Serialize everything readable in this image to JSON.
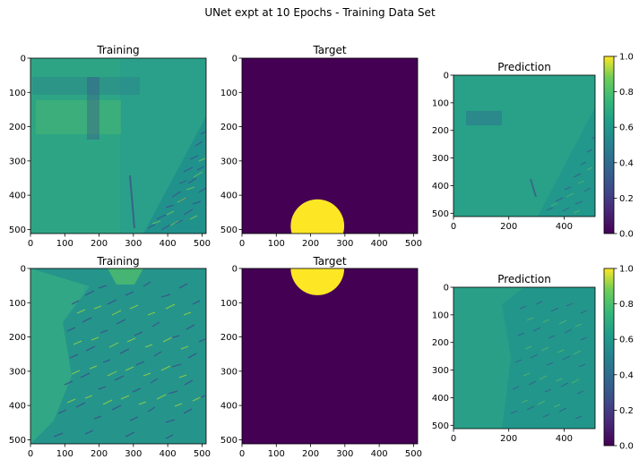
{
  "figure": {
    "suptitle": "UNet expt at 10 Epochs - Training Data Set"
  },
  "chart_data": [
    {
      "type": "heatmap",
      "title": "Training",
      "row": 1,
      "image": "training-seafloor-texture-1",
      "xlim": [
        0,
        512
      ],
      "ylim": [
        512,
        0
      ],
      "xticks": [
        0,
        100,
        200,
        300,
        400,
        500
      ],
      "yticks": [
        0,
        100,
        200,
        300,
        400,
        500
      ],
      "colormap": "viridis"
    },
    {
      "type": "heatmap",
      "title": "Target",
      "row": 1,
      "image": "target-mask",
      "mask_circle": {
        "cx": 220,
        "cy": 490,
        "r": 78
      },
      "background_value": 0,
      "circle_value": 1,
      "xlim": [
        0,
        512
      ],
      "ylim": [
        512,
        0
      ],
      "xticks": [
        0,
        100,
        200,
        300,
        400,
        500
      ],
      "yticks": [
        0,
        100,
        200,
        300,
        400,
        500
      ],
      "colormap": "viridis"
    },
    {
      "type": "heatmap",
      "title": "Prediction",
      "row": 1,
      "image": "prediction-texture-1",
      "xlim": [
        0,
        512
      ],
      "ylim": [
        512,
        0
      ],
      "xticks": [
        0,
        200,
        400
      ],
      "yticks": [
        0,
        100,
        200,
        300,
        400,
        500
      ],
      "colormap": "viridis",
      "colorbar": {
        "range": [
          0.0,
          1.0
        ],
        "ticks": [
          "0.0",
          "0.2",
          "0.4",
          "0.6",
          "0.8",
          "1.0"
        ]
      }
    },
    {
      "type": "heatmap",
      "title": "Training",
      "row": 2,
      "image": "training-seafloor-texture-2",
      "xlim": [
        0,
        512
      ],
      "ylim": [
        512,
        0
      ],
      "xticks": [
        0,
        100,
        200,
        300,
        400,
        500
      ],
      "yticks": [
        0,
        100,
        200,
        300,
        400,
        500
      ],
      "colormap": "viridis"
    },
    {
      "type": "heatmap",
      "title": "Target",
      "row": 2,
      "image": "target-mask",
      "mask_circle": {
        "cx": 220,
        "cy": 0,
        "r": 78
      },
      "background_value": 0,
      "circle_value": 1,
      "xlim": [
        0,
        512
      ],
      "ylim": [
        512,
        0
      ],
      "xticks": [
        0,
        100,
        200,
        300,
        400,
        500
      ],
      "yticks": [
        0,
        100,
        200,
        300,
        400,
        500
      ],
      "colormap": "viridis"
    },
    {
      "type": "heatmap",
      "title": "Prediction",
      "row": 2,
      "image": "prediction-texture-2",
      "xlim": [
        0,
        512
      ],
      "ylim": [
        512,
        0
      ],
      "xticks": [
        0,
        200,
        400
      ],
      "yticks": [
        0,
        100,
        200,
        300,
        400,
        500
      ],
      "colormap": "viridis",
      "colorbar": {
        "range": [
          0.0,
          1.0
        ],
        "ticks": [
          "0.0",
          "0.2",
          "0.4",
          "0.6",
          "0.8",
          "1.0"
        ]
      }
    }
  ],
  "colors": {
    "viridis_low": "#440154",
    "viridis_mid": "#21918c",
    "viridis_high": "#fde725"
  }
}
